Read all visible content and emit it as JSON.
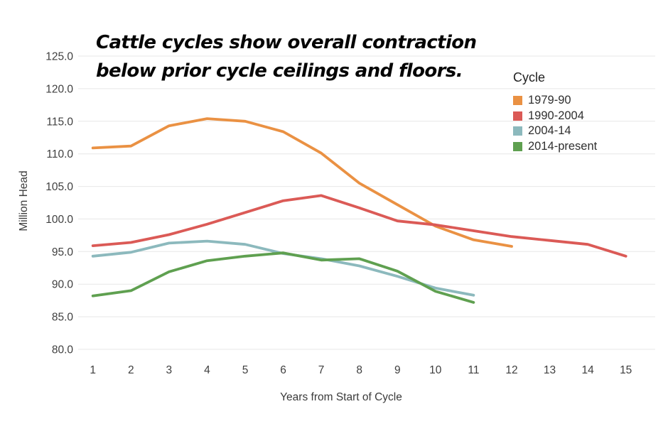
{
  "title": {
    "line1": "Cattle cycles show overall contraction",
    "line2": "below prior cycle ceilings and floors."
  },
  "colors": {
    "background": "#ffffff",
    "gridline": "#e7e7e7",
    "tick_text": "#3f3f3f",
    "title_text": "#050505"
  },
  "chart_data": {
    "type": "line",
    "title": "Cattle cycles show overall contraction below prior cycle ceilings and floors.",
    "xlabel": "Years from Start of Cycle",
    "ylabel": "Million Head",
    "legend_title": "Cycle",
    "legend_position": "right-top",
    "grid": "horizontal-only",
    "xlim": [
      1,
      15
    ],
    "ylim": [
      80,
      125
    ],
    "ytick_step": 5,
    "x_tick_labels": [
      "1",
      "2",
      "3",
      "4",
      "5",
      "6",
      "7",
      "8",
      "9",
      "10",
      "11",
      "12",
      "13",
      "14",
      "15"
    ],
    "y_tick_labels": [
      "80.0",
      "85.0",
      "90.0",
      "95.0",
      "100.0",
      "105.0",
      "110.0",
      "115.0",
      "120.0",
      "125.0"
    ],
    "series": [
      {
        "name": "1979-90",
        "color": "#EA9143",
        "values": [
          110.9,
          111.2,
          114.3,
          115.4,
          115.0,
          113.4,
          110.1,
          105.5,
          102.2,
          98.9,
          96.8,
          95.8
        ]
      },
      {
        "name": "1990-2004",
        "color": "#DB5A56",
        "values": [
          95.9,
          96.4,
          97.6,
          99.2,
          101.0,
          102.8,
          103.6,
          101.7,
          99.7,
          99.1,
          98.2,
          97.3,
          96.7,
          96.1,
          94.3
        ]
      },
      {
        "name": "2004-14",
        "color": "#8CB9BD",
        "values": [
          94.3,
          94.9,
          96.3,
          96.6,
          96.1,
          94.7,
          93.9,
          92.8,
          91.2,
          89.4,
          88.3
        ]
      },
      {
        "name": "2014-present",
        "color": "#5FA050",
        "values": [
          88.2,
          89.0,
          91.9,
          93.6,
          94.3,
          94.8,
          93.7,
          93.9,
          92.0,
          88.9,
          87.2
        ]
      }
    ]
  }
}
